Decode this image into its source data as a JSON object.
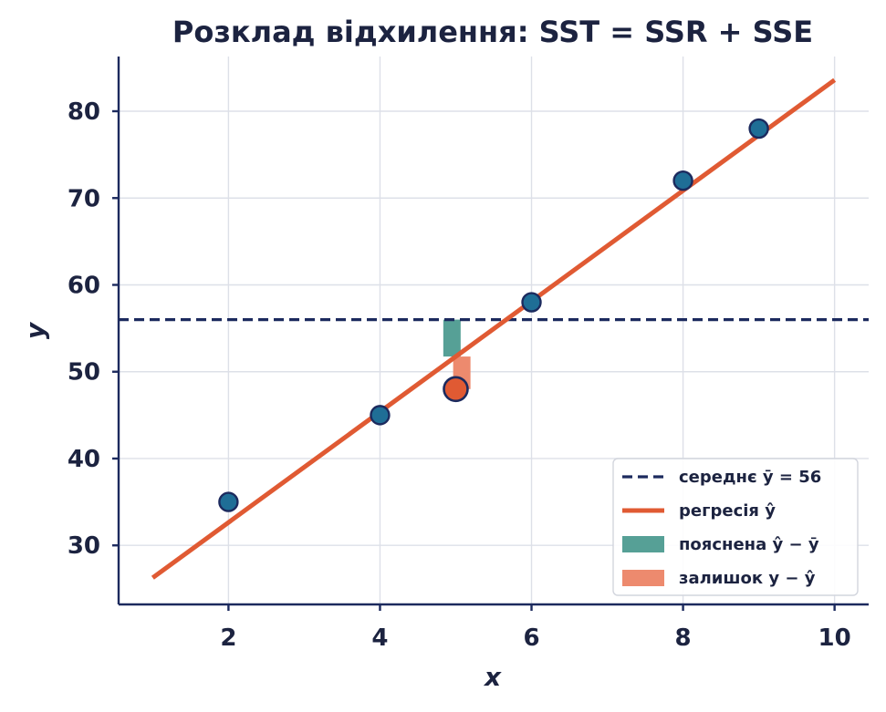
{
  "chart_data": {
    "type": "scatter",
    "title": "Розклад відхилення: SST = SSR + SSE",
    "xlabel": "x",
    "ylabel": "y",
    "xlim": [
      0.55,
      10.45
    ],
    "ylim": [
      23.2,
      86.3
    ],
    "xticks": [
      2,
      4,
      6,
      8,
      10
    ],
    "yticks": [
      30,
      40,
      50,
      60,
      70,
      80
    ],
    "grid": true,
    "points": [
      {
        "x": 2,
        "y": 35
      },
      {
        "x": 4,
        "y": 45
      },
      {
        "x": 6,
        "y": 58
      },
      {
        "x": 8,
        "y": 72
      },
      {
        "x": 9,
        "y": 78
      }
    ],
    "highlight_point": {
      "x": 5,
      "y": 48
    },
    "mean_y": 56,
    "regression": {
      "x_start": 1,
      "x_end": 10,
      "intercept": 19.9,
      "slope": 6.37
    },
    "explained_bar": {
      "x": 4.95,
      "y_from": 51.75,
      "y_to": 56
    },
    "residual_bar": {
      "x": 5.08,
      "y_from": 48,
      "y_to": 51.75
    },
    "legend": {
      "placement": "lower-right",
      "entries": [
        {
          "label": "середнє ȳ = 56",
          "style": "dashed-line"
        },
        {
          "label": "регресія ŷ",
          "style": "solid-line"
        },
        {
          "label": "пояснена ŷ − ȳ",
          "style": "patch-explained"
        },
        {
          "label": "залишок y − ŷ",
          "style": "patch-residual"
        }
      ]
    },
    "colors": {
      "mean": "#1c2a5e",
      "regression": "#e05a33",
      "explained": "#56a096",
      "residual": "#ed8a6e",
      "point_fill": "#1f6e96",
      "point_edge": "#1c2a5e",
      "highlight_fill": "#e05a33"
    }
  }
}
